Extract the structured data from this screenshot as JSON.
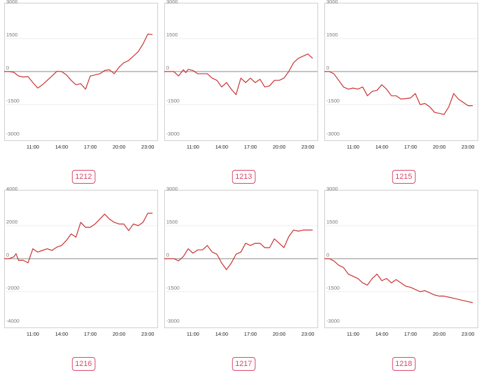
{
  "chart_data": [
    {
      "type": "line",
      "label": "1212",
      "color": "#c83232",
      "ylim": [
        -3000,
        3000
      ],
      "yticks": [
        3000,
        1500,
        0,
        -1500,
        -3000
      ],
      "xlim": [
        8,
        24
      ],
      "xticks": [
        "11:00",
        "14:00",
        "17:00",
        "20:00",
        "23:00"
      ],
      "xtick_hours": [
        11,
        14,
        17,
        20,
        23
      ],
      "x": [
        8,
        8.5,
        9,
        9.5,
        10,
        10.5,
        11,
        11.5,
        12,
        12.5,
        13,
        13.5,
        14,
        14.5,
        15,
        15.5,
        16,
        16.5,
        17,
        17.5,
        18,
        18.5,
        19,
        19.5,
        20,
        20.5,
        21,
        21.5,
        22,
        22.5,
        23,
        23.5
      ],
      "y": [
        0,
        0,
        -30,
        -200,
        -250,
        -230,
        -500,
        -750,
        -600,
        -400,
        -200,
        10,
        0,
        -150,
        -400,
        -600,
        -550,
        -800,
        -200,
        -150,
        -100,
        50,
        80,
        -100,
        200,
        400,
        500,
        700,
        900,
        1250,
        1700,
        1680
      ]
    },
    {
      "type": "line",
      "label": "1213",
      "color": "#c83232",
      "ylim": [
        -3000,
        3000
      ],
      "yticks": [
        3000,
        1500,
        0,
        -1500,
        -3000
      ],
      "xlim": [
        8,
        24
      ],
      "xticks": [
        "11:00",
        "14:00",
        "17:00",
        "20:00",
        "23:00"
      ],
      "xtick_hours": [
        11,
        14,
        17,
        20,
        23
      ],
      "x": [
        8,
        8.5,
        9,
        9.5,
        10,
        10.25,
        10.5,
        11,
        11.5,
        12,
        12.5,
        13,
        13.5,
        14,
        14.5,
        15,
        15.5,
        16,
        16.5,
        17,
        17.5,
        18,
        18.5,
        19,
        19.5,
        20,
        20.5,
        21,
        21.5,
        22,
        22.5,
        23,
        23.5
      ],
      "y": [
        0,
        0,
        0,
        -200,
        80,
        -50,
        100,
        50,
        -100,
        -100,
        -100,
        -300,
        -400,
        -700,
        -500,
        -800,
        -1050,
        -300,
        -500,
        -300,
        -500,
        -350,
        -700,
        -650,
        -400,
        -400,
        -300,
        0,
        400,
        600,
        700,
        800,
        600
      ]
    },
    {
      "type": "line",
      "label": "1215",
      "color": "#c83232",
      "ylim": [
        -3000,
        3000
      ],
      "yticks": [
        3000,
        1500,
        0,
        -1500,
        -3000
      ],
      "xlim": [
        8,
        24
      ],
      "xticks": [
        "11:00",
        "14:00",
        "17:00",
        "20:00",
        "23:00"
      ],
      "xtick_hours": [
        11,
        14,
        17,
        20,
        23
      ],
      "x": [
        8,
        8.5,
        9,
        9.5,
        10,
        10.5,
        11,
        11.5,
        12,
        12.5,
        13,
        13.5,
        14,
        14.5,
        15,
        15.5,
        16,
        16.5,
        17,
        17.5,
        18,
        18.5,
        19,
        19.5,
        20,
        20.5,
        21,
        21.5,
        22,
        22.5,
        23,
        23.5
      ],
      "y": [
        0,
        0,
        -100,
        -400,
        -700,
        -800,
        -750,
        -800,
        -700,
        -1100,
        -900,
        -850,
        -600,
        -800,
        -1100,
        -1100,
        -1250,
        -1230,
        -1200,
        -1000,
        -1500,
        -1450,
        -1600,
        -1850,
        -1900,
        -1950,
        -1600,
        -1000,
        -1250,
        -1400,
        -1550,
        -1550
      ]
    },
    {
      "type": "line",
      "label": "1216",
      "color": "#c83232",
      "ylim": [
        -4000,
        4000
      ],
      "yticks": [
        4000,
        2000,
        0,
        -2000,
        -4000
      ],
      "xlim": [
        8,
        24
      ],
      "xticks": [
        "11:00",
        "14:00",
        "17:00",
        "20:00",
        "23:00"
      ],
      "xtick_hours": [
        11,
        14,
        17,
        20,
        23
      ],
      "x": [
        8,
        8.5,
        9,
        9.25,
        9.5,
        10,
        10.5,
        11,
        11.5,
        12,
        12.5,
        13,
        13.5,
        14,
        14.5,
        15,
        15.5,
        16,
        16.5,
        17,
        17.5,
        18,
        18.5,
        19,
        19.5,
        20,
        20.5,
        21,
        21.5,
        22,
        22.5,
        23,
        23.5
      ],
      "y": [
        0,
        0,
        100,
        300,
        -100,
        -100,
        -250,
        600,
        400,
        500,
        600,
        500,
        700,
        800,
        1100,
        1500,
        1300,
        2200,
        1900,
        1900,
        2100,
        2400,
        2700,
        2400,
        2200,
        2100,
        2100,
        1700,
        2100,
        2000,
        2200,
        2750,
        2750
      ]
    },
    {
      "type": "line",
      "label": "1217",
      "color": "#c83232",
      "ylim": [
        -3000,
        3000
      ],
      "yticks": [
        3000,
        1500,
        0,
        -1500,
        -3000
      ],
      "xlim": [
        8,
        24
      ],
      "xticks": [
        "11:00",
        "14:00",
        "17:00",
        "20:00",
        "23:00"
      ],
      "xtick_hours": [
        11,
        14,
        17,
        20,
        23
      ],
      "x": [
        8,
        8.5,
        9,
        9.5,
        10,
        10.5,
        11,
        11.5,
        12,
        12.5,
        13,
        13.5,
        14,
        14.5,
        15,
        15.5,
        16,
        16.5,
        17,
        17.5,
        18,
        18.5,
        19,
        19.5,
        20,
        20.5,
        21,
        21.5,
        22,
        22.5,
        23,
        23.5
      ],
      "y": [
        0,
        0,
        0,
        -100,
        100,
        450,
        250,
        400,
        400,
        600,
        300,
        200,
        -200,
        -500,
        -200,
        200,
        300,
        700,
        600,
        700,
        700,
        500,
        500,
        900,
        700,
        500,
        1000,
        1300,
        1250,
        1300,
        1300,
        1300
      ]
    },
    {
      "type": "line",
      "label": "1218",
      "color": "#c83232",
      "ylim": [
        -3000,
        3000
      ],
      "yticks": [
        3000,
        1500,
        0,
        -1500,
        -3000
      ],
      "xlim": [
        8,
        24
      ],
      "xticks": [
        "11:00",
        "14:00",
        "17:00",
        "20:00",
        "23:00"
      ],
      "xtick_hours": [
        11,
        14,
        17,
        20,
        23
      ],
      "x": [
        8,
        8.5,
        9,
        9.5,
        10,
        10.5,
        11,
        11.5,
        12,
        12.5,
        13,
        13.5,
        14,
        14.5,
        15,
        15.5,
        16,
        16.5,
        17,
        17.5,
        18,
        18.5,
        19,
        19.5,
        20,
        20.5,
        21,
        21.5,
        22,
        22.5,
        23,
        23.5
      ],
      "y": [
        0,
        0,
        -100,
        -300,
        -400,
        -700,
        -800,
        -900,
        -1100,
        -1200,
        -900,
        -700,
        -1000,
        -900,
        -1100,
        -950,
        -1100,
        -1250,
        -1300,
        -1400,
        -1500,
        -1450,
        -1550,
        -1650,
        -1700,
        -1700,
        -1750,
        -1800,
        -1850,
        -1900,
        -1950,
        -2000
      ]
    }
  ]
}
